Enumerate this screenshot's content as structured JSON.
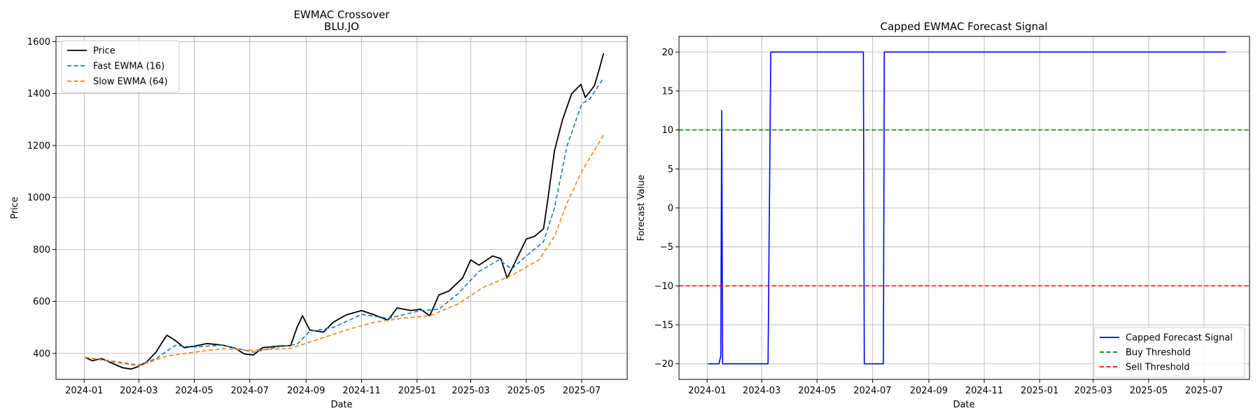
{
  "chart_data": [
    {
      "type": "line",
      "title": "EWMAC Crossover",
      "subtitle": "BLU.JO",
      "xlabel": "Date",
      "ylabel": "Price",
      "xlim": [
        "2023-12-01",
        "2025-08-20"
      ],
      "ylim": [
        300,
        1620
      ],
      "x_ticks": [
        "2024-01",
        "2024-03",
        "2024-05",
        "2024-07",
        "2024-09",
        "2024-11",
        "2025-01",
        "2025-03",
        "2025-05",
        "2025-07"
      ],
      "y_ticks": [
        400,
        600,
        800,
        1000,
        1200,
        1400,
        1600
      ],
      "grid": true,
      "legend": "top-left",
      "series": [
        {
          "name": "Price",
          "color": "#000000",
          "style": "solid",
          "points": [
            [
              "2024-01-02",
              385
            ],
            [
              "2024-01-10",
              372
            ],
            [
              "2024-01-20",
              380
            ],
            [
              "2024-02-01",
              362
            ],
            [
              "2024-02-12",
              345
            ],
            [
              "2024-02-22",
              340
            ],
            [
              "2024-03-01",
              350
            ],
            [
              "2024-03-10",
              368
            ],
            [
              "2024-03-20",
              405
            ],
            [
              "2024-03-28",
              450
            ],
            [
              "2024-04-01",
              470
            ],
            [
              "2024-04-10",
              450
            ],
            [
              "2024-04-20",
              422
            ],
            [
              "2024-05-01",
              428
            ],
            [
              "2024-05-15",
              438
            ],
            [
              "2024-06-01",
              432
            ],
            [
              "2024-06-15",
              420
            ],
            [
              "2024-06-25",
              398
            ],
            [
              "2024-07-05",
              394
            ],
            [
              "2024-07-15",
              422
            ],
            [
              "2024-08-01",
              428
            ],
            [
              "2024-08-15",
              430
            ],
            [
              "2024-08-22",
              500
            ],
            [
              "2024-08-28",
              545
            ],
            [
              "2024-09-05",
              490
            ],
            [
              "2024-09-20",
              482
            ],
            [
              "2024-10-01",
              520
            ],
            [
              "2024-10-15",
              548
            ],
            [
              "2024-11-01",
              565
            ],
            [
              "2024-11-15",
              548
            ],
            [
              "2024-11-30",
              528
            ],
            [
              "2024-12-10",
              575
            ],
            [
              "2024-12-25",
              565
            ],
            [
              "2025-01-05",
              570
            ],
            [
              "2025-01-15",
              545
            ],
            [
              "2025-01-25",
              625
            ],
            [
              "2025-02-05",
              640
            ],
            [
              "2025-02-20",
              690
            ],
            [
              "2025-03-01",
              760
            ],
            [
              "2025-03-10",
              740
            ],
            [
              "2025-03-25",
              775
            ],
            [
              "2025-04-03",
              765
            ],
            [
              "2025-04-10",
              690
            ],
            [
              "2025-04-20",
              760
            ],
            [
              "2025-05-01",
              840
            ],
            [
              "2025-05-10",
              850
            ],
            [
              "2025-05-20",
              880
            ],
            [
              "2025-05-25",
              1000
            ],
            [
              "2025-06-01",
              1180
            ],
            [
              "2025-06-10",
              1300
            ],
            [
              "2025-06-20",
              1400
            ],
            [
              "2025-06-30",
              1435
            ],
            [
              "2025-07-05",
              1385
            ],
            [
              "2025-07-15",
              1430
            ],
            [
              "2025-07-20",
              1490
            ],
            [
              "2025-07-25",
              1555
            ]
          ]
        },
        {
          "name": "Fast EWMA (16)",
          "color": "#1f77b4",
          "style": "dashed",
          "points": [
            [
              "2024-01-02",
              385
            ],
            [
              "2024-02-01",
              370
            ],
            [
              "2024-03-01",
              355
            ],
            [
              "2024-03-20",
              380
            ],
            [
              "2024-04-10",
              430
            ],
            [
              "2024-05-01",
              425
            ],
            [
              "2024-06-01",
              432
            ],
            [
              "2024-07-05",
              405
            ],
            [
              "2024-08-01",
              425
            ],
            [
              "2024-08-22",
              435
            ],
            [
              "2024-09-05",
              485
            ],
            [
              "2024-10-01",
              500
            ],
            [
              "2024-11-01",
              550
            ],
            [
              "2024-12-01",
              535
            ],
            [
              "2025-01-05",
              565
            ],
            [
              "2025-01-25",
              570
            ],
            [
              "2025-02-15",
              630
            ],
            [
              "2025-03-10",
              715
            ],
            [
              "2025-04-01",
              760
            ],
            [
              "2025-04-15",
              725
            ],
            [
              "2025-05-01",
              775
            ],
            [
              "2025-05-20",
              830
            ],
            [
              "2025-06-01",
              960
            ],
            [
              "2025-06-15",
              1200
            ],
            [
              "2025-07-01",
              1360
            ],
            [
              "2025-07-10",
              1380
            ],
            [
              "2025-07-25",
              1460
            ]
          ]
        },
        {
          "name": "Slow EWMA (64)",
          "color": "#ff7f0e",
          "style": "dashed",
          "points": [
            [
              "2024-01-02",
              385
            ],
            [
              "2024-02-01",
              368
            ],
            [
              "2024-03-01",
              352
            ],
            [
              "2024-04-01",
              390
            ],
            [
              "2024-05-01",
              405
            ],
            [
              "2024-06-01",
              418
            ],
            [
              "2024-07-05",
              412
            ],
            [
              "2024-08-15",
              420
            ],
            [
              "2024-09-15",
              455
            ],
            [
              "2024-10-15",
              490
            ],
            [
              "2024-11-15",
              520
            ],
            [
              "2024-12-15",
              535
            ],
            [
              "2025-01-15",
              545
            ],
            [
              "2025-02-15",
              590
            ],
            [
              "2025-03-15",
              655
            ],
            [
              "2025-04-15",
              700
            ],
            [
              "2025-05-15",
              760
            ],
            [
              "2025-06-01",
              850
            ],
            [
              "2025-06-15",
              980
            ],
            [
              "2025-07-01",
              1100
            ],
            [
              "2025-07-25",
              1240
            ]
          ]
        }
      ]
    },
    {
      "type": "line",
      "title": "Capped EWMAC Forecast Signal",
      "xlabel": "Date",
      "ylabel": "Forecast Value",
      "xlim": [
        "2023-12-01",
        "2025-08-20"
      ],
      "ylim": [
        -22,
        22
      ],
      "x_ticks": [
        "2024-01",
        "2024-03",
        "2024-05",
        "2024-07",
        "2024-09",
        "2024-11",
        "2025-01",
        "2025-03",
        "2025-05",
        "2025-07"
      ],
      "y_ticks": [
        -20,
        -15,
        -10,
        -5,
        0,
        5,
        10,
        15,
        20
      ],
      "grid": true,
      "legend": "bottom-right",
      "series": [
        {
          "name": "Capped Forecast Signal",
          "color": "#0000ff",
          "style": "solid",
          "points": [
            [
              "2024-01-02",
              -20
            ],
            [
              "2024-01-14",
              -20
            ],
            [
              "2024-01-16",
              -19
            ],
            [
              "2024-01-17",
              12.5
            ],
            [
              "2024-01-18",
              -20
            ],
            [
              "2024-03-08",
              -20
            ],
            [
              "2024-03-11",
              20
            ],
            [
              "2024-06-21",
              20
            ],
            [
              "2024-06-22",
              -20
            ],
            [
              "2024-07-13",
              -20
            ],
            [
              "2024-07-14",
              20
            ],
            [
              "2025-07-25",
              20
            ]
          ]
        },
        {
          "name": "Buy Threshold",
          "color": "#008000",
          "style": "dashed",
          "constant": 10
        },
        {
          "name": "Sell Threshold",
          "color": "#ff0000",
          "style": "dashed",
          "constant": -10
        }
      ]
    }
  ]
}
